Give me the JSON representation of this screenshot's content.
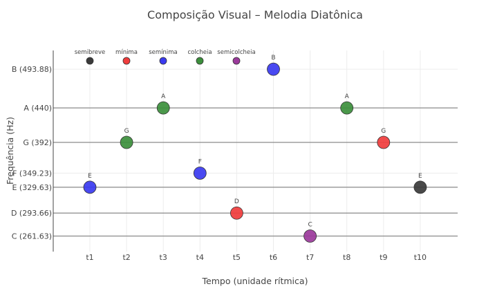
{
  "chart_data": {
    "type": "scatter",
    "title": "Composição Visual – Melodia Diatônica",
    "xlabel": "Tempo (unidade rítmica)",
    "ylabel": "Frequência (Hz)",
    "categories": [
      "t1",
      "t2",
      "t3",
      "t4",
      "t5",
      "t6",
      "t7",
      "t8",
      "t9",
      "t10"
    ],
    "y_ticks": [
      {
        "value": 261.63,
        "label": "C (261.63)"
      },
      {
        "value": 293.66,
        "label": "D (293.66)"
      },
      {
        "value": 329.63,
        "label": "E (329.63)"
      },
      {
        "value": 349.23,
        "label": "F (349.23)"
      },
      {
        "value": 392,
        "label": "G (392)"
      },
      {
        "value": 440,
        "label": "A (440)"
      },
      {
        "value": 493.88,
        "label": "B (493.88)"
      }
    ],
    "ylim": [
      240,
      520
    ],
    "reference_lines": [
      261.63,
      293.66,
      329.63,
      392,
      440
    ],
    "points": [
      {
        "x": "t1",
        "y": 329.63,
        "note": "E",
        "color": "#3a3af0"
      },
      {
        "x": "t2",
        "y": 392,
        "note": "G",
        "color": "#3c8f3c"
      },
      {
        "x": "t3",
        "y": 440,
        "note": "A",
        "color": "#3c8f3c"
      },
      {
        "x": "t4",
        "y": 349.23,
        "note": "F",
        "color": "#3a3af0"
      },
      {
        "x": "t5",
        "y": 293.66,
        "note": "D",
        "color": "#f03c3c"
      },
      {
        "x": "t6",
        "y": 493.88,
        "note": "B",
        "color": "#3a3af0"
      },
      {
        "x": "t7",
        "y": 261.63,
        "note": "C",
        "color": "#9b3a9b"
      },
      {
        "x": "t8",
        "y": 440,
        "note": "A",
        "color": "#3c8f3c"
      },
      {
        "x": "t9",
        "y": 392,
        "note": "G",
        "color": "#f03c3c"
      },
      {
        "x": "t10",
        "y": 329.63,
        "note": "E",
        "color": "#3a3a3a"
      }
    ],
    "legend": [
      {
        "name": "semibreve",
        "color": "#3a3a3a"
      },
      {
        "name": "mínima",
        "color": "#f03c3c"
      },
      {
        "name": "semínima",
        "color": "#3a3af0"
      },
      {
        "name": "colcheia",
        "color": "#3c8f3c"
      },
      {
        "name": "semicolcheia",
        "color": "#9b3a9b"
      }
    ],
    "legend_position": "top-left",
    "grid": true
  }
}
